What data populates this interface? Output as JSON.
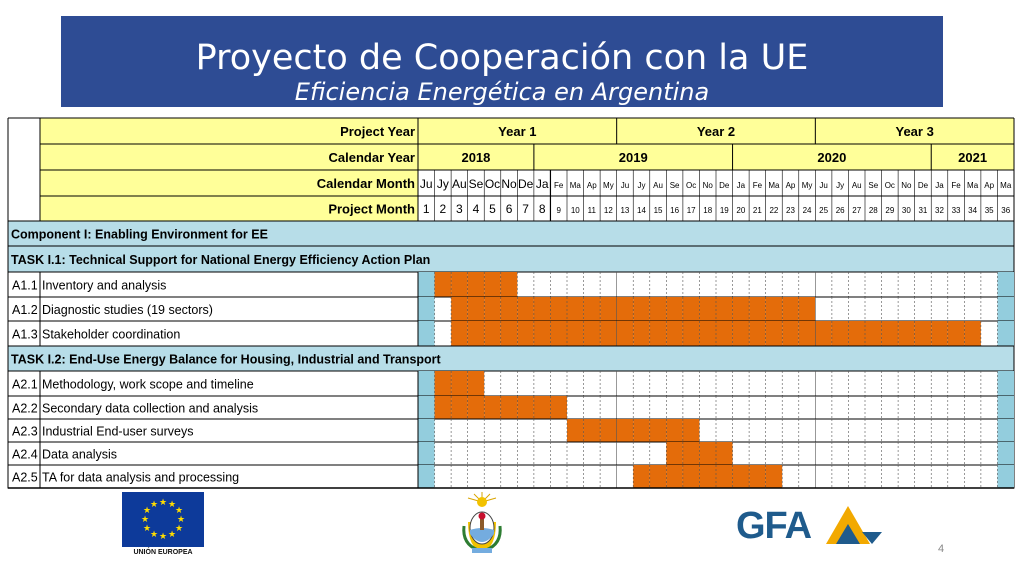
{
  "title": "Proyecto de Cooperación con la UE",
  "subtitle": "Eficiencia Energética en Argentina",
  "slide_number": "4",
  "eu_logo_caption": "UNIÓN EUROPEA",
  "gfa_logo_text": "GFA",
  "header_labels": {
    "project_year": "Project Year",
    "calendar_year": "Calendar Year",
    "calendar_month": "Calendar Month",
    "project_month": "Project Month"
  },
  "project_years": [
    "Year 1",
    "Year 2",
    "Year 3"
  ],
  "calendar_years": [
    {
      "label": "2018",
      "months": 7
    },
    {
      "label": "2019",
      "months": 12
    },
    {
      "label": "2020",
      "months": 12
    },
    {
      "label": "2021",
      "months": 5
    }
  ],
  "calendar_months": [
    "Ju",
    "Jy",
    "Au",
    "Se",
    "Oc",
    "No",
    "De",
    "Ja",
    "Fe",
    "Ma",
    "Ap",
    "My",
    "Ju",
    "Jy",
    "Au",
    "Se",
    "Oc",
    "No",
    "De",
    "Ja",
    "Fe",
    "Ma",
    "Ap",
    "My",
    "Ju",
    "Jy",
    "Au",
    "Se",
    "Oc",
    "No",
    "De",
    "Ja",
    "Fe",
    "Ma",
    "Ap",
    "Ma"
  ],
  "project_months": [
    "1",
    "2",
    "3",
    "4",
    "5",
    "6",
    "7",
    "8",
    "9",
    "10",
    "11",
    "12",
    "13",
    "14",
    "15",
    "16",
    "17",
    "18",
    "19",
    "20",
    "21",
    "22",
    "23",
    "24",
    "25",
    "26",
    "27",
    "28",
    "29",
    "30",
    "31",
    "32",
    "33",
    "34",
    "35",
    "36"
  ],
  "colors": {
    "bar": "#e46c0a",
    "header_fill": "#ffff99",
    "section_fill": "#b7dde8",
    "marker_fill": "#93cddd",
    "title_bg": "#2e4c94"
  },
  "rows": [
    {
      "type": "section",
      "label": "Component I: Enabling Environment for EE"
    },
    {
      "type": "section",
      "label": "TASK I.1: Technical Support for National Energy Efficiency Action Plan"
    },
    {
      "type": "activity",
      "code": "A1.1",
      "label": "Inventory and analysis",
      "active_months": [
        2,
        3,
        4,
        5,
        6
      ]
    },
    {
      "type": "activity",
      "code": "A1.2",
      "label": "Diagnostic studies (19 sectors)",
      "active_months": [
        3,
        4,
        5,
        6,
        7,
        8,
        9,
        10,
        11,
        12,
        13,
        14,
        15,
        16,
        17,
        18,
        19,
        20,
        21,
        22,
        23,
        24
      ]
    },
    {
      "type": "activity",
      "code": "A1.3",
      "label": "Stakeholder coordination",
      "active_months": [
        3,
        4,
        5,
        6,
        7,
        8,
        9,
        10,
        11,
        12,
        13,
        14,
        15,
        16,
        17,
        18,
        19,
        20,
        21,
        22,
        23,
        24,
        25,
        26,
        27,
        28,
        29,
        30,
        31,
        32,
        33,
        34
      ]
    },
    {
      "type": "section",
      "label": "TASK I.2: End-Use Energy Balance for Housing, Industrial and Transport"
    },
    {
      "type": "activity",
      "code": "A2.1",
      "label": "Methodology, work scope and timeline",
      "active_months": [
        2,
        3,
        4
      ]
    },
    {
      "type": "activity",
      "code": "A2.2",
      "label": "Secondary data collection and analysis",
      "active_months": [
        2,
        3,
        4,
        5,
        6,
        7,
        8,
        9
      ]
    },
    {
      "type": "activity",
      "code": "A2.3",
      "label": "Industrial End-user surveys",
      "active_months": [
        10,
        11,
        12,
        13,
        14,
        15,
        16,
        17
      ]
    },
    {
      "type": "activity",
      "code": "A2.4",
      "label": "Data analysis",
      "active_months": [
        16,
        17,
        18,
        19
      ]
    },
    {
      "type": "activity",
      "code": "A2.5",
      "label": "TA for data analysis and processing",
      "active_months": [
        14,
        15,
        16,
        17,
        18,
        19,
        20,
        21,
        22
      ]
    }
  ]
}
